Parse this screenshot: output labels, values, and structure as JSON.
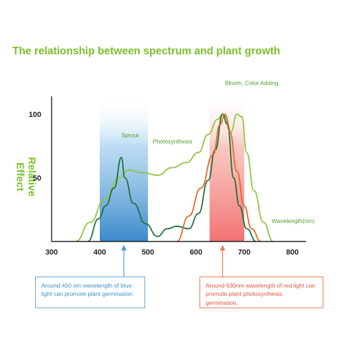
{
  "chart_data": {
    "type": "line",
    "title": "The relationship between spectrum and plant growth",
    "ylabel": "Relative Effect",
    "xlabel": "Wavelength(nm)",
    "x_ticks": [
      "300",
      "400",
      "500",
      "600",
      "700",
      "800"
    ],
    "y_ticks": [
      "100",
      "50"
    ],
    "xlim": [
      300,
      800
    ],
    "ylim": [
      0,
      100
    ],
    "bands": [
      {
        "color": "#2f82c8",
        "from": 400,
        "to": 500
      },
      {
        "color": "#f06a6a",
        "from": 628,
        "to": 700
      }
    ],
    "annotations": [
      {
        "text": "Sprout",
        "x": 445,
        "y": 82
      },
      {
        "text": "Photosynthesis",
        "x": 510,
        "y": 77
      },
      {
        "text": "Bloom, Color Adding",
        "x": 660,
        "y": 123
      }
    ],
    "series": [
      {
        "color": "#8dc63f",
        "points": [
          [
            350,
            0
          ],
          [
            380,
            15
          ],
          [
            410,
            33
          ],
          [
            440,
            50
          ],
          [
            460,
            56
          ],
          [
            490,
            54
          ],
          [
            520,
            52
          ],
          [
            550,
            58
          ],
          [
            580,
            62
          ],
          [
            605,
            70
          ],
          [
            625,
            84
          ],
          [
            645,
            96
          ],
          [
            655,
            100
          ],
          [
            662,
            98
          ],
          [
            672,
            86
          ],
          [
            685,
            100
          ],
          [
            695,
            98
          ],
          [
            705,
            70
          ],
          [
            720,
            40
          ],
          [
            740,
            15
          ],
          [
            760,
            0
          ]
        ]
      },
      {
        "color": "#1f6f3a",
        "points": [
          [
            375,
            0
          ],
          [
            398,
            18
          ],
          [
            412,
            28
          ],
          [
            430,
            42
          ],
          [
            445,
            66
          ],
          [
            452,
            50
          ],
          [
            470,
            30
          ],
          [
            495,
            14
          ],
          [
            520,
            4
          ],
          [
            540,
            10
          ],
          [
            560,
            12
          ],
          [
            585,
            10
          ],
          [
            605,
            22
          ],
          [
            625,
            48
          ],
          [
            640,
            72
          ],
          [
            655,
            100
          ],
          [
            665,
            92
          ],
          [
            678,
            50
          ],
          [
            690,
            28
          ],
          [
            705,
            10
          ],
          [
            725,
            0
          ]
        ]
      },
      {
        "color": "#e8662a",
        "points": [
          [
            560,
            0
          ],
          [
            585,
            20
          ],
          [
            610,
            42
          ],
          [
            635,
            68
          ],
          [
            650,
            92
          ],
          [
            660,
            100
          ],
          [
            670,
            86
          ],
          [
            685,
            55
          ],
          [
            700,
            28
          ],
          [
            715,
            10
          ],
          [
            735,
            0
          ]
        ]
      }
    ]
  },
  "callouts": {
    "blue": "Around 450 nm wavelength of blue light can promote plant germination",
    "red": "Around 630nm wavelength of red light can promote plant photosynthesis, germination,"
  },
  "colors": {
    "title": "#7bbf2a",
    "axis_text": "#222222",
    "annotation": "#4aa02c"
  }
}
